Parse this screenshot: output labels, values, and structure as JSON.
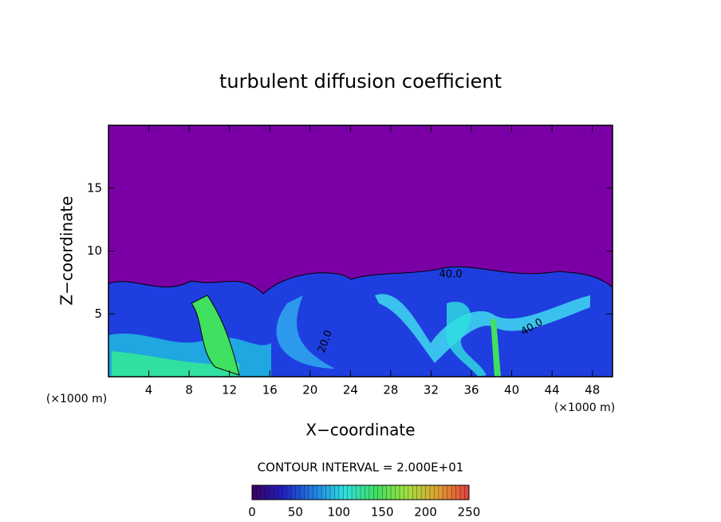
{
  "chart_data": {
    "type": "contour",
    "title": "turbulent diffusion coefficient",
    "xlabel": "X−coordinate",
    "ylabel": "Z−coordinate",
    "xunit": "(×1000 m)",
    "x_axis_unit": "(×1000 m)",
    "xlim": [
      0,
      50
    ],
    "ylim": [
      0,
      20
    ],
    "xticks": [
      4,
      8,
      12,
      16,
      20,
      24,
      28,
      32,
      36,
      40,
      44,
      48
    ],
    "yticks": [
      5,
      10,
      15
    ],
    "contour_labels": [
      "40.0",
      "40.0",
      "20.0"
    ],
    "contour_interval": "CONTOUR INTERVAL = 2.000E+01",
    "colorbar": {
      "lim": [
        0,
        250
      ],
      "ticks": [
        0,
        50,
        100,
        150,
        200,
        250
      ],
      "colors": [
        "#3a0060",
        "#2020c0",
        "#2080e0",
        "#30e0e0",
        "#40e060",
        "#a0e040",
        "#e0a030",
        "#e04040"
      ]
    }
  }
}
